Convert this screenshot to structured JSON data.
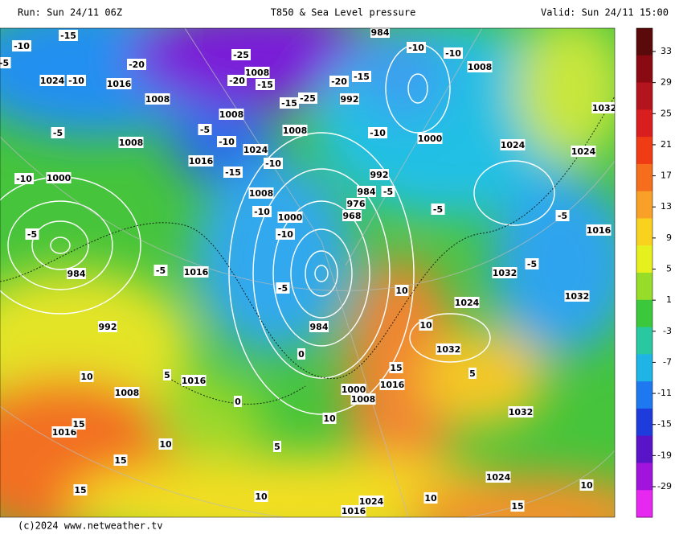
{
  "header": {
    "run": "Run: Sun 24/11 06Z",
    "title": "T850 & Sea Level pressure",
    "valid": "Valid: Sun 24/11 15:00"
  },
  "footer": "(c)2024 www.netweather.tv",
  "colorbar": {
    "labels": [
      33,
      29,
      25,
      21,
      17,
      13,
      9,
      5,
      1,
      -3,
      -7,
      -11,
      -15,
      -19,
      -29
    ],
    "colors": [
      "#5a0a0a",
      "#8a0a14",
      "#b4141e",
      "#d81e1e",
      "#f03c14",
      "#f46e1e",
      "#f8a028",
      "#f8d21e",
      "#e6f01e",
      "#96dc28",
      "#3cc83c",
      "#28c8a0",
      "#1eb4e6",
      "#1e78f0",
      "#1e3cdc",
      "#5a14c8",
      "#a014dc",
      "#e628f0"
    ]
  },
  "map": {
    "labels": [
      -15,
      -10,
      -5,
      1024,
      -10,
      -20,
      1016,
      1008,
      -25,
      1008,
      -20,
      -15,
      1008,
      -15,
      -25,
      1008,
      -20,
      -15,
      992,
      984,
      -10,
      -10,
      1008,
      1032,
      -5,
      1008,
      -5,
      -10,
      1024,
      1016,
      -15,
      -10,
      -10,
      1000,
      1024,
      1024,
      -10,
      1000,
      1008,
      992,
      984,
      976,
      968,
      -10,
      1000,
      -10,
      -5,
      -5,
      -5,
      1016,
      -5,
      984,
      -5,
      1016,
      1032,
      -5,
      -5,
      10,
      1024,
      1032,
      984,
      992,
      1032,
      10,
      1016,
      15,
      1016,
      1000,
      1008,
      1008,
      1016,
      15,
      1032,
      1024,
      15,
      15,
      1016,
      1024,
      15,
      10,
      10,
      10,
      10,
      10,
      5,
      0,
      0,
      5,
      10,
      5
    ]
  }
}
